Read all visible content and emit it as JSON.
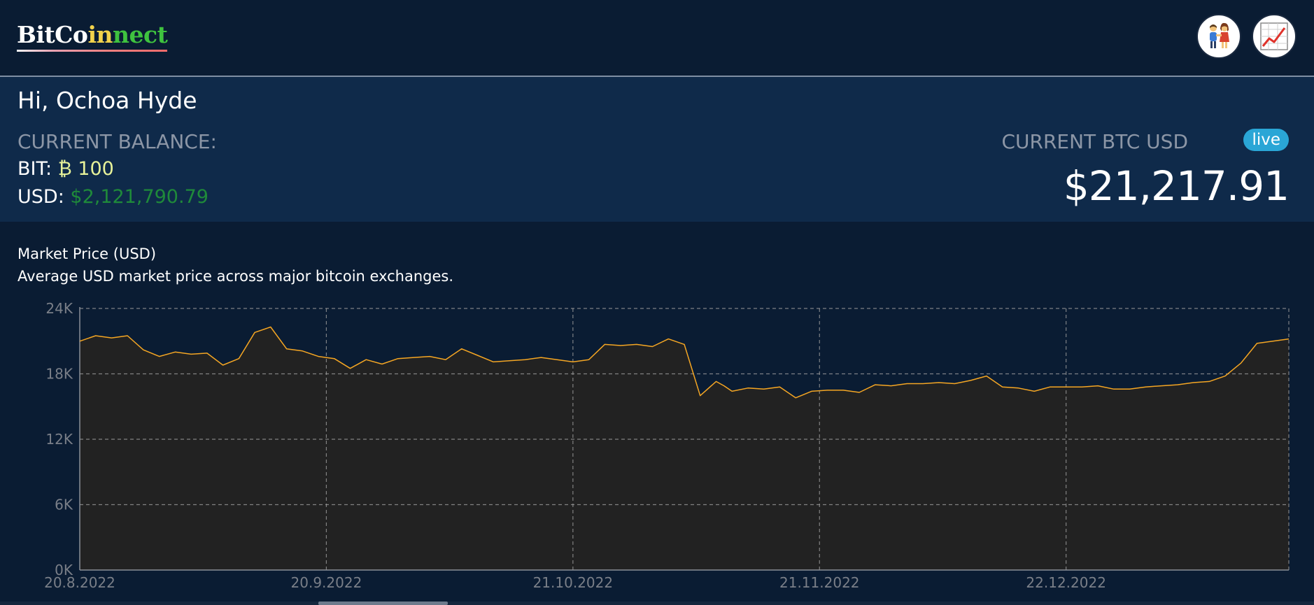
{
  "header": {
    "logo": {
      "part1": "BitCo",
      "part2": "in",
      "part3": "nect"
    },
    "nav": [
      {
        "name": "contacts",
        "icon": "users-icon"
      },
      {
        "name": "statistics",
        "icon": "chart-trend-icon"
      }
    ]
  },
  "user": {
    "greeting": "Hi, Ochoa Hyde",
    "balance_label": "CURRENT BALANCE:",
    "bit_label": "BIT:",
    "bit_value": "₿ 100",
    "usd_label": "USD:",
    "usd_value": "$2,121,790.79"
  },
  "rate": {
    "label": "CURRENT BTC USD",
    "badge": "live",
    "value": "$21,217.91"
  },
  "chart_section": {
    "title": "Market Price (USD)",
    "description": "Average USD market price across major bitcoin exchanges."
  },
  "colors": {
    "line": "#f5a623",
    "area": "#222222",
    "bit_value": "#e7f29a",
    "usd_value": "#1f8a3a",
    "live_badge": "#2aa6d6"
  },
  "chart_data": {
    "type": "area",
    "title": "Market Price (USD)",
    "ylim": [
      0,
      24000
    ],
    "y_ticks": [
      {
        "value": 24000,
        "label": "24K"
      },
      {
        "value": 18000,
        "label": "18K"
      },
      {
        "value": 12000,
        "label": "12K"
      },
      {
        "value": 6000,
        "label": "6K"
      },
      {
        "value": 0,
        "label": "0K"
      }
    ],
    "x_ticks": [
      {
        "date": "2022-08-20",
        "label": "20.8.2022"
      },
      {
        "date": "2022-09-20",
        "label": "20.9.2022"
      },
      {
        "date": "2022-10-21",
        "label": "21.10.2022"
      },
      {
        "date": "2022-11-21",
        "label": "21.11.2022"
      },
      {
        "date": "2022-12-22",
        "label": "22.12.2022"
      }
    ],
    "x_range": [
      "2022-08-20",
      "2023-01-19"
    ],
    "grid": true,
    "series": [
      {
        "x": [
          "2022-08-20",
          "2022-08-22",
          "2022-08-24",
          "2022-08-26",
          "2022-08-28",
          "2022-08-30",
          "2022-09-01",
          "2022-09-03",
          "2022-09-05",
          "2022-09-07",
          "2022-09-09",
          "2022-09-11",
          "2022-09-13",
          "2022-09-15",
          "2022-09-17",
          "2022-09-19",
          "2022-09-21",
          "2022-09-23",
          "2022-09-25",
          "2022-09-27",
          "2022-09-29",
          "2022-10-01",
          "2022-10-03",
          "2022-10-05",
          "2022-10-07",
          "2022-10-09",
          "2022-10-11",
          "2022-10-13",
          "2022-10-15",
          "2022-10-17",
          "2022-10-19",
          "2022-10-21",
          "2022-10-23",
          "2022-10-25",
          "2022-10-27",
          "2022-10-29",
          "2022-10-31",
          "2022-11-02",
          "2022-11-04",
          "2022-11-06",
          "2022-11-08",
          "2022-11-09",
          "2022-11-10",
          "2022-11-12",
          "2022-11-14",
          "2022-11-16",
          "2022-11-18",
          "2022-11-20",
          "2022-11-22",
          "2022-11-24",
          "2022-11-26",
          "2022-11-28",
          "2022-11-30",
          "2022-12-02",
          "2022-12-04",
          "2022-12-06",
          "2022-12-08",
          "2022-12-10",
          "2022-12-12",
          "2022-12-14",
          "2022-12-16",
          "2022-12-18",
          "2022-12-20",
          "2022-12-22",
          "2022-12-24",
          "2022-12-26",
          "2022-12-28",
          "2022-12-30",
          "2023-01-01",
          "2023-01-03",
          "2023-01-05",
          "2023-01-07",
          "2023-01-09",
          "2023-01-11",
          "2023-01-13",
          "2023-01-15",
          "2023-01-17",
          "2023-01-19"
        ],
        "y": [
          21000,
          21500,
          21300,
          21500,
          20200,
          19600,
          20000,
          19800,
          19900,
          18800,
          19400,
          21800,
          22300,
          20300,
          20100,
          19600,
          19400,
          18500,
          19300,
          18900,
          19400,
          19500,
          19600,
          19300,
          20300,
          19700,
          19100,
          19200,
          19300,
          19500,
          19300,
          19100,
          19300,
          20700,
          20600,
          20700,
          20500,
          21200,
          20700,
          16000,
          17300,
          16900,
          16400,
          16700,
          16600,
          16800,
          15800,
          16400,
          16500,
          16500,
          16300,
          17000,
          16900,
          17100,
          17100,
          17200,
          17100,
          17400,
          17800,
          16800,
          16700,
          16400,
          16800,
          16800,
          16800,
          16900,
          16600,
          16600,
          16800,
          16900,
          17000,
          17200,
          17300,
          17800,
          19000,
          20800,
          21000,
          21200
        ]
      }
    ]
  }
}
